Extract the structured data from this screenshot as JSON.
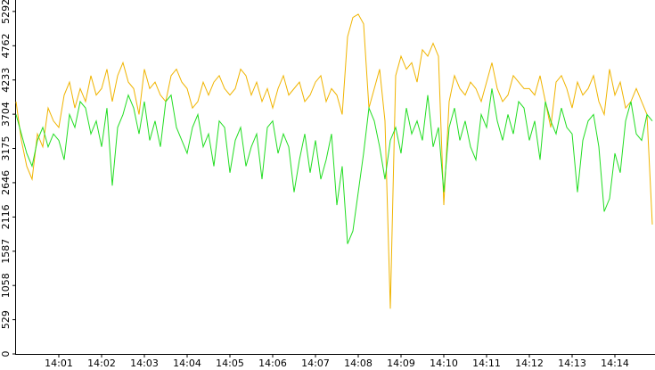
{
  "chart_data": {
    "type": "line",
    "categories": [
      null,
      null,
      null,
      null,
      null,
      null,
      null,
      null,
      "14:01",
      null,
      null,
      null,
      null,
      null,
      null,
      null,
      "14:02",
      null,
      null,
      null,
      null,
      null,
      null,
      null,
      "14:03",
      null,
      null,
      null,
      null,
      null,
      null,
      null,
      "14:04",
      null,
      null,
      null,
      null,
      null,
      null,
      null,
      "14:05",
      null,
      null,
      null,
      null,
      null,
      null,
      null,
      "14:06",
      null,
      null,
      null,
      null,
      null,
      null,
      null,
      "14:07",
      null,
      null,
      null,
      null,
      null,
      null,
      null,
      "14:08",
      null,
      null,
      null,
      null,
      null,
      null,
      null,
      "14:09",
      null,
      null,
      null,
      null,
      null,
      null,
      null,
      "14:10",
      null,
      null,
      null,
      null,
      null,
      null,
      null,
      "14:11",
      null,
      null,
      null,
      null,
      null,
      null,
      null,
      "14:12",
      null,
      null,
      null,
      null,
      null,
      null,
      null,
      "14:13",
      null,
      null,
      null,
      null,
      null,
      null,
      null,
      "14:14",
      null,
      null,
      null,
      null,
      null,
      null,
      null
    ],
    "series": [
      {
        "color": "#f0b400",
        "values": [
          3900,
          3300,
          2900,
          2700,
          3400,
          3200,
          3800,
          3600,
          3500,
          4000,
          4200,
          3800,
          4100,
          3900,
          4300,
          4000,
          4100,
          4400,
          3900,
          4300,
          4500,
          4200,
          4100,
          3700,
          4400,
          4100,
          4200,
          4000,
          3900,
          4300,
          4400,
          4200,
          4100,
          3800,
          3900,
          4200,
          4000,
          4200,
          4300,
          4100,
          4000,
          4100,
          4400,
          4300,
          4000,
          4200,
          3900,
          4100,
          3800,
          4100,
          4300,
          4000,
          4100,
          4200,
          3900,
          4000,
          4200,
          4300,
          3900,
          4100,
          4000,
          3700,
          4900,
          5200,
          5250,
          5100,
          3800,
          4100,
          4400,
          3600,
          700,
          4300,
          4600,
          4400,
          4500,
          4200,
          4700,
          4600,
          4800,
          4600,
          2300,
          3900,
          4300,
          4100,
          4000,
          4200,
          4100,
          3900,
          4200,
          4500,
          4100,
          3900,
          4000,
          4300,
          4200,
          4100,
          4100,
          4000,
          4300,
          3900,
          3500,
          4200,
          4300,
          4100,
          3800,
          4200,
          4000,
          4100,
          4300,
          3900,
          3700,
          4400,
          4000,
          4200,
          3800,
          3900,
          4100,
          3900,
          3700,
          2000
        ]
      },
      {
        "color": "#22dd22",
        "values": [
          3700,
          3400,
          3100,
          2900,
          3300,
          3500,
          3200,
          3400,
          3300,
          3000,
          3700,
          3500,
          3900,
          3800,
          3400,
          3600,
          3200,
          3800,
          2600,
          3500,
          3700,
          4000,
          3800,
          3400,
          3900,
          3300,
          3600,
          3200,
          3900,
          4000,
          3500,
          3300,
          3100,
          3500,
          3700,
          3200,
          3400,
          2900,
          3600,
          3500,
          2800,
          3300,
          3500,
          2900,
          3200,
          3400,
          2700,
          3500,
          3600,
          3100,
          3400,
          3200,
          2500,
          3000,
          3400,
          2800,
          3300,
          2700,
          3000,
          3400,
          2300,
          2900,
          1700,
          1900,
          2500,
          3100,
          3800,
          3600,
          3200,
          2700,
          3300,
          3500,
          3100,
          3800,
          3400,
          3600,
          3300,
          4000,
          3200,
          3500,
          2500,
          3500,
          3800,
          3300,
          3600,
          3200,
          3000,
          3700,
          3500,
          4100,
          3600,
          3300,
          3700,
          3400,
          3900,
          3800,
          3300,
          3600,
          3000,
          3900,
          3600,
          3400,
          3800,
          3500,
          3400,
          2500,
          3300,
          3600,
          3700,
          3200,
          2200,
          2400,
          3100,
          2800,
          3600,
          3900,
          3400,
          3300,
          3700,
          3600
        ]
      }
    ],
    "ylim": [
      0,
      5400
    ],
    "yticks": [
      0,
      529,
      1058,
      1587,
      2116,
      2646,
      3175,
      3704,
      4233,
      4762,
      5292
    ]
  }
}
